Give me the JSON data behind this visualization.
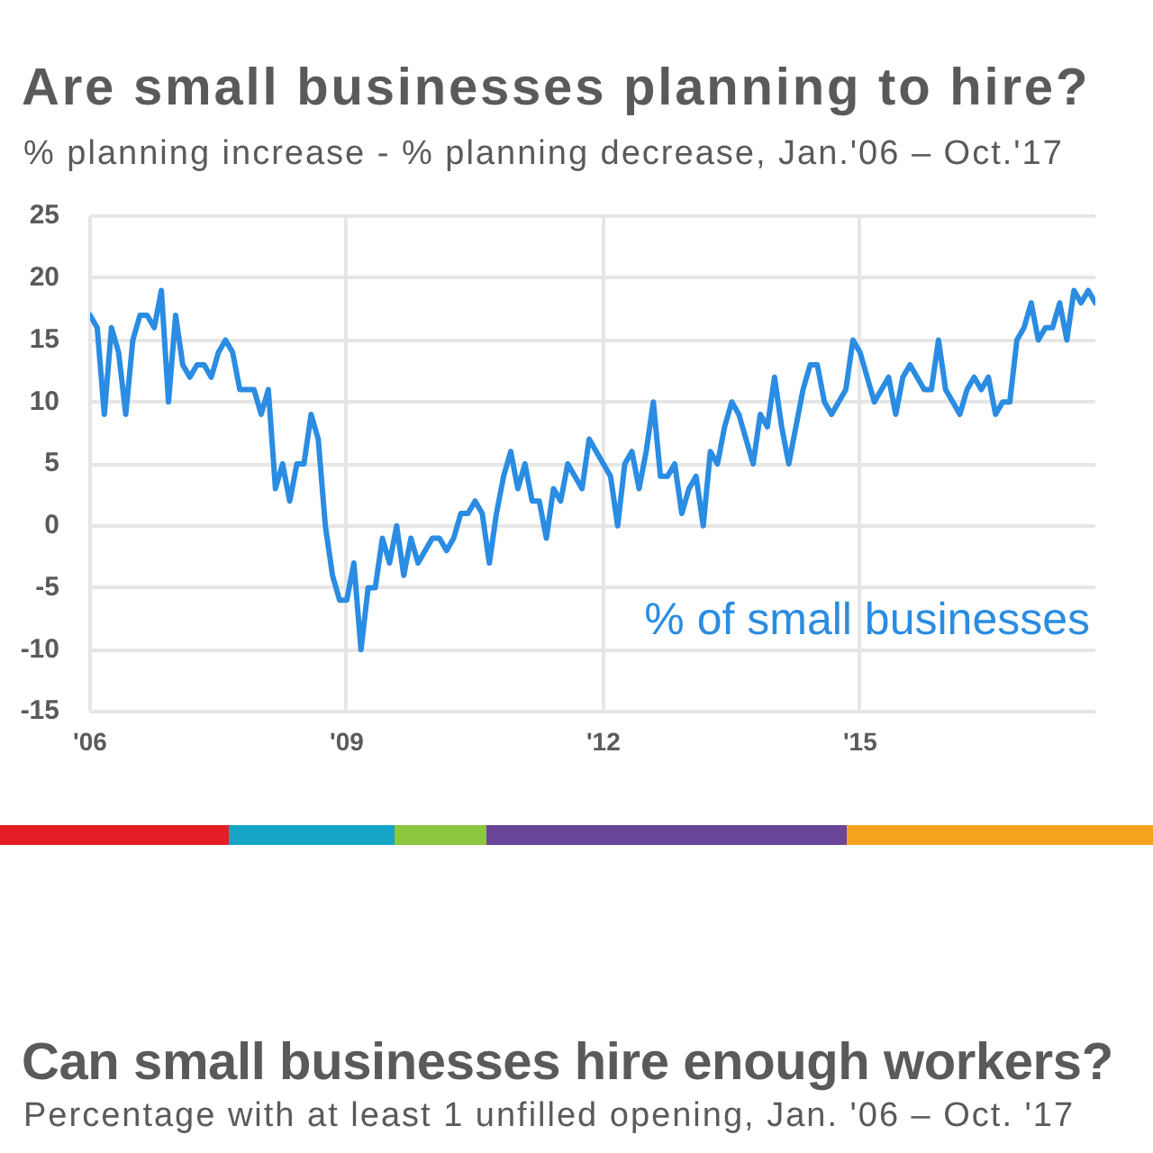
{
  "chart_data": [
    {
      "type": "line",
      "title": "Are small businesses planning to hire?",
      "subtitle": "% planning increase - % planning decrease, Jan.'06 – Oct.'17",
      "x": [
        "2006-01",
        "2006-02",
        "2006-03",
        "2006-04",
        "2006-05",
        "2006-06",
        "2006-07",
        "2006-08",
        "2006-09",
        "2006-10",
        "2006-11",
        "2006-12",
        "2007-01",
        "2007-02",
        "2007-03",
        "2007-04",
        "2007-05",
        "2007-06",
        "2007-07",
        "2007-08",
        "2007-09",
        "2007-10",
        "2007-11",
        "2007-12",
        "2008-01",
        "2008-02",
        "2008-03",
        "2008-04",
        "2008-05",
        "2008-06",
        "2008-07",
        "2008-08",
        "2008-09",
        "2008-10",
        "2008-11",
        "2008-12",
        "2009-01",
        "2009-02",
        "2009-03",
        "2009-04",
        "2009-05",
        "2009-06",
        "2009-07",
        "2009-08",
        "2009-09",
        "2009-10",
        "2009-11",
        "2009-12",
        "2010-01",
        "2010-02",
        "2010-03",
        "2010-04",
        "2010-05",
        "2010-06",
        "2010-07",
        "2010-08",
        "2010-09",
        "2010-10",
        "2010-11",
        "2010-12",
        "2011-01",
        "2011-02",
        "2011-03",
        "2011-04",
        "2011-05",
        "2011-06",
        "2011-07",
        "2011-08",
        "2011-09",
        "2011-10",
        "2011-11",
        "2011-12",
        "2012-01",
        "2012-02",
        "2012-03",
        "2012-04",
        "2012-05",
        "2012-06",
        "2012-07",
        "2012-08",
        "2012-09",
        "2012-10",
        "2012-11",
        "2012-12",
        "2013-01",
        "2013-02",
        "2013-03",
        "2013-04",
        "2013-05",
        "2013-06",
        "2013-07",
        "2013-08",
        "2013-09",
        "2013-10",
        "2013-11",
        "2013-12",
        "2014-01",
        "2014-02",
        "2014-03",
        "2014-04",
        "2014-05",
        "2014-06",
        "2014-07",
        "2014-08",
        "2014-09",
        "2014-10",
        "2014-11",
        "2014-12",
        "2015-01",
        "2015-02",
        "2015-03",
        "2015-04",
        "2015-05",
        "2015-06",
        "2015-07",
        "2015-08",
        "2015-09",
        "2015-10",
        "2015-11",
        "2015-12",
        "2016-01",
        "2016-02",
        "2016-03",
        "2016-04",
        "2016-05",
        "2016-06",
        "2016-07",
        "2016-08",
        "2016-09",
        "2016-10",
        "2016-11",
        "2016-12",
        "2017-01",
        "2017-02",
        "2017-03",
        "2017-04",
        "2017-05",
        "2017-06",
        "2017-07",
        "2017-08",
        "2017-09",
        "2017-10"
      ],
      "series": [
        {
          "name": "% of small businesses",
          "color": "#2a8ce2",
          "values": [
            17,
            16,
            9,
            16,
            14,
            9,
            15,
            17,
            17,
            16,
            19,
            10,
            17,
            13,
            12,
            13,
            13,
            12,
            14,
            15,
            14,
            11,
            11,
            11,
            9,
            11,
            3,
            5,
            2,
            5,
            5,
            9,
            7,
            0,
            -4,
            -6,
            -6,
            -3,
            -10,
            -5,
            -5,
            -1,
            -3,
            0,
            -4,
            -1,
            -3,
            -2,
            -1,
            -1,
            -2,
            -1,
            1,
            1,
            2,
            1,
            -3,
            1,
            4,
            6,
            3,
            5,
            2,
            2,
            -1,
            3,
            2,
            5,
            4,
            3,
            7,
            6,
            5,
            4,
            0,
            5,
            6,
            3,
            6,
            10,
            4,
            4,
            5,
            1,
            3,
            4,
            0,
            6,
            5,
            8,
            10,
            9,
            7,
            5,
            9,
            8,
            12,
            8,
            5,
            8,
            11,
            13,
            13,
            10,
            9,
            10,
            11,
            15,
            14,
            12,
            10,
            11,
            12,
            9,
            12,
            13,
            12,
            11,
            11,
            15,
            11,
            10,
            9,
            11,
            12,
            11,
            12,
            9,
            10,
            10,
            15,
            16,
            18,
            15,
            16,
            16,
            18,
            15,
            19,
            18,
            19,
            18
          ]
        }
      ],
      "xlim": [
        "2006-01",
        "2017-10"
      ],
      "xticks": [
        {
          "value": "2006-01",
          "label": "'06"
        },
        {
          "value": "2009-01",
          "label": "'09"
        },
        {
          "value": "2012-01",
          "label": "'12"
        },
        {
          "value": "2015-01",
          "label": "'15"
        }
      ],
      "ylim": [
        -15,
        25
      ],
      "yticks": [
        -15,
        -10,
        -5,
        0,
        5,
        10,
        15,
        20,
        25
      ],
      "grid": true,
      "legend": "bottom right"
    },
    {
      "type": "other",
      "title": "Can small businesses hire enough workers?",
      "subtitle": "Percentage with at least 1 unfilled opening, Jan. '06 – Oct. '17"
    }
  ]
}
